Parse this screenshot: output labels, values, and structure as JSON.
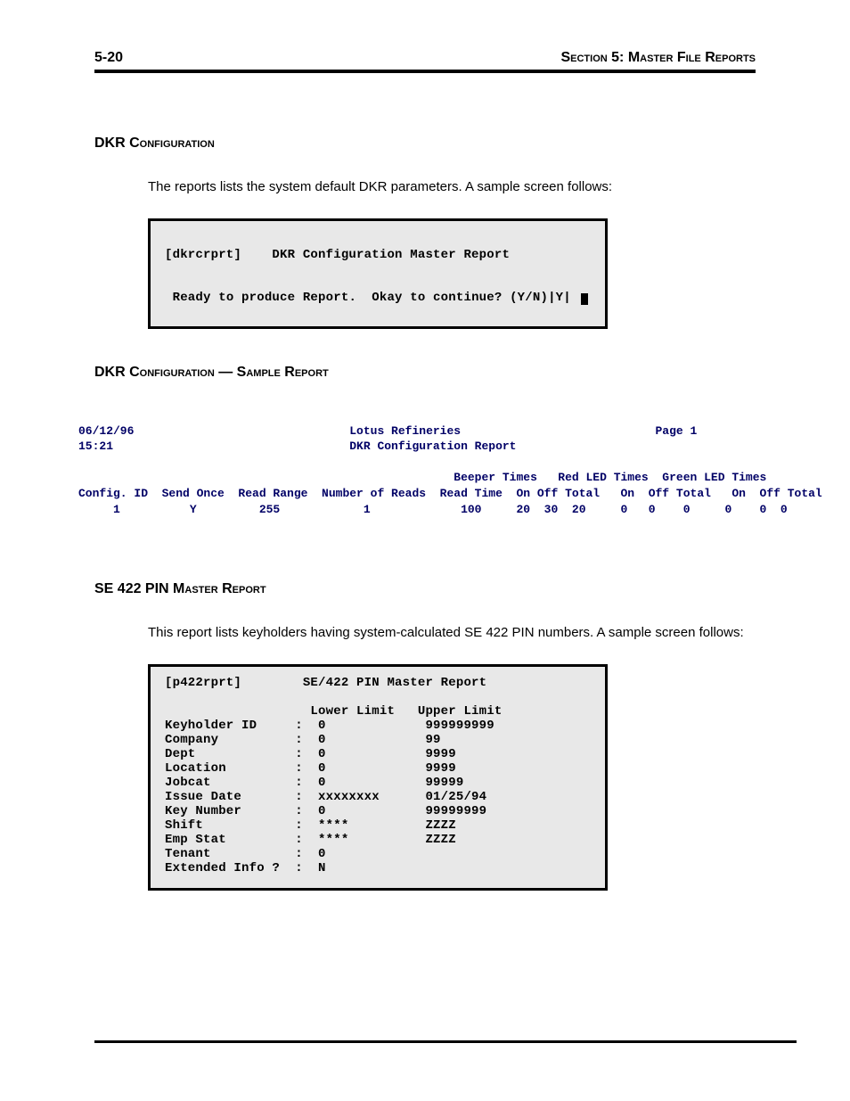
{
  "header": {
    "page_number": "5-20",
    "section_label": "Section 5: Master File Reports"
  },
  "section1": {
    "heading": "DKR Configuration",
    "intro": "The reports lists the system default DKR parameters.  A sample screen follows:",
    "screen_line1": "[dkrcrprt]    DKR Configuration Master Report",
    "screen_line2": "Ready to produce Report.  Okay to continue? (Y/N)|Y|"
  },
  "section2": {
    "heading": "DKR Configuration — Sample Report",
    "report_line1": "06/12/96                               Lotus Refineries                            Page 1",
    "report_line2": "15:21                                  DKR Configuration Report",
    "report_line3": "                                                      Beeper Times   Red LED Times  Green LED Times",
    "report_line4": "Config. ID  Send Once  Read Range  Number of Reads  Read Time  On Off Total   On  Off Total   On  Off Total",
    "report_line5": "     1          Y         255            1             100     20  30  20     0   0    0     0    0  0"
  },
  "section3": {
    "heading": "SE 422 PIN Master Report",
    "intro": "This report lists keyholders having system-calculated SE 422 PIN numbers.  A sample screen follows:",
    "screen": {
      "title": "[p422rprt]        SE/422 PIN Master Report",
      "header": "                   Lower Limit   Upper Limit",
      "rows": [
        {
          "label": "Keyholder ID     :",
          "low": "0",
          "high": "999999999"
        },
        {
          "label": "Company          :",
          "low": "0",
          "high": "99"
        },
        {
          "label": "Dept             :",
          "low": "0",
          "high": "9999"
        },
        {
          "label": "Location         :",
          "low": "0",
          "high": "9999"
        },
        {
          "label": "Jobcat           :",
          "low": "0",
          "high": "99999"
        },
        {
          "label": "Issue Date       :",
          "low": "xxxxxxxx",
          "high": "01/25/94"
        },
        {
          "label": "Key Number       :",
          "low": "0",
          "high": "99999999"
        },
        {
          "label": "Shift            :",
          "low": "****",
          "high": "ZZZZ"
        },
        {
          "label": "Emp Stat         :",
          "low": "****",
          "high": "ZZZZ"
        },
        {
          "label": "Tenant           :",
          "low": "0",
          "high": ""
        },
        {
          "label": "Extended Info ?  :",
          "low": "N",
          "high": ""
        }
      ]
    }
  }
}
